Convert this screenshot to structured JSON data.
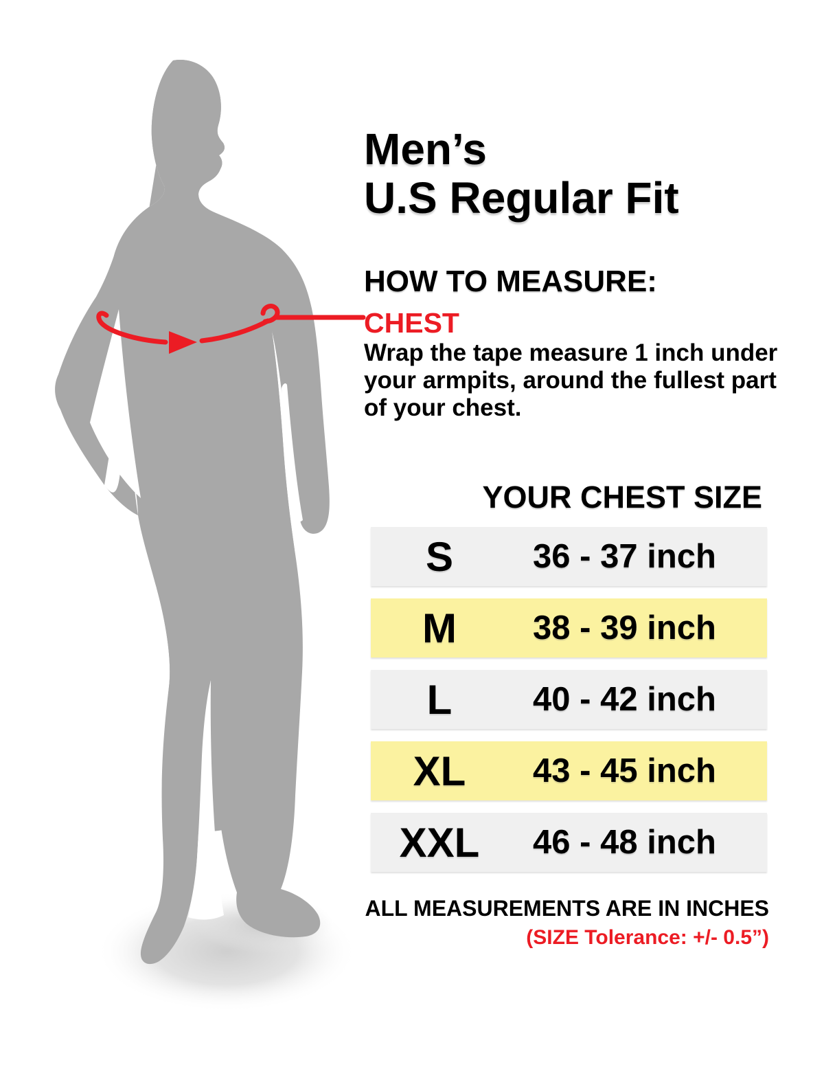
{
  "title": "Men’s\nU.S Regular Fit",
  "how_to_measure": {
    "heading": "HOW TO MEASURE:",
    "measure_point_label": "CHEST",
    "instructions": "Wrap the tape measure 1 inch under\nyour armpits, around the fullest part\nof your chest."
  },
  "size_chart": {
    "header": "YOUR CHEST SIZE",
    "unit": "inch",
    "rows": [
      {
        "size": "S",
        "range": "36 - 37 inch",
        "highlighted": false
      },
      {
        "size": "M",
        "range": "38 - 39 inch",
        "highlighted": true
      },
      {
        "size": "L",
        "range": "40 - 42 inch",
        "highlighted": false
      },
      {
        "size": "XL",
        "range": "43 - 45 inch",
        "highlighted": true
      },
      {
        "size": "XXL",
        "range": "46 - 48 inch",
        "highlighted": false
      }
    ]
  },
  "footer": {
    "note": "ALL MEASUREMENTS ARE IN INCHES",
    "tolerance": "(SIZE Tolerance: +/- 0.5”)"
  },
  "figure": {
    "type": "male-silhouette-standing",
    "annotation": "tape-measure-arc-at-chest"
  },
  "colors": {
    "accent_red": "#EC1C24",
    "row_gray": "#F0F0F0",
    "row_yellow": "#FBF2A0",
    "silhouette_gray": "#A8A8A8"
  }
}
